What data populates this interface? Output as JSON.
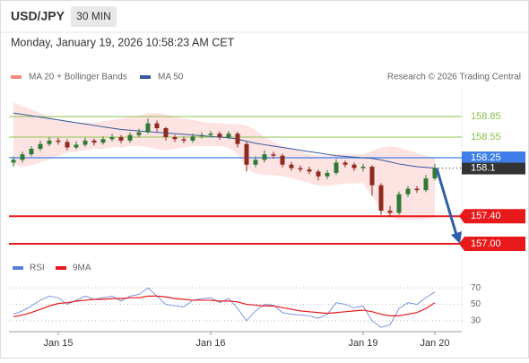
{
  "header": {
    "symbol": "USD/JPY",
    "interval": "30 MIN",
    "timestamp": "Monday, January 19, 2026 10:58:23 AM CET"
  },
  "chart_data": [
    {
      "type": "candlestick",
      "legend": [
        {
          "name": "MA 20 + Bollinger Bands",
          "color": "#f28b82"
        },
        {
          "name": "MA 50",
          "color": "#34589c"
        }
      ],
      "credit": "Research © 2026 Trading Central",
      "categories": [
        null,
        null,
        null,
        null,
        null,
        "Jan 15",
        null,
        null,
        null,
        null,
        null,
        null,
        null,
        null,
        null,
        null,
        null,
        null,
        null,
        null,
        null,
        null,
        "Jan 16",
        null,
        null,
        null,
        null,
        null,
        null,
        null,
        null,
        null,
        null,
        null,
        null,
        null,
        null,
        null,
        null,
        "Jan 19",
        null,
        null,
        null,
        null,
        null,
        null,
        null,
        "Jan 20"
      ],
      "open": [
        158.18,
        158.22,
        158.3,
        158.38,
        158.45,
        158.5,
        158.48,
        158.4,
        158.44,
        158.5,
        158.47,
        158.52,
        158.55,
        158.5,
        158.58,
        158.62,
        158.75,
        158.68,
        158.55,
        158.52,
        158.5,
        158.56,
        158.58,
        158.6,
        158.55,
        158.6,
        158.45,
        158.15,
        158.22,
        158.3,
        158.28,
        158.15,
        158.1,
        158.08,
        158.05,
        157.98,
        158.03,
        158.18,
        158.15,
        158.1,
        158.12,
        157.85,
        157.48,
        157.45,
        157.72,
        157.8,
        157.78,
        157.95
      ],
      "high": [
        158.27,
        158.34,
        158.42,
        158.5,
        158.55,
        158.54,
        158.52,
        158.49,
        158.54,
        158.53,
        158.56,
        158.6,
        158.58,
        158.62,
        158.67,
        158.82,
        158.79,
        158.7,
        158.58,
        158.56,
        158.6,
        158.62,
        158.64,
        158.63,
        158.64,
        158.63,
        158.48,
        158.27,
        158.36,
        158.34,
        158.31,
        158.19,
        158.14,
        158.12,
        158.08,
        158.07,
        158.23,
        158.21,
        158.18,
        158.16,
        158.14,
        157.88,
        157.55,
        157.76,
        157.84,
        157.84,
        158.0,
        158.16
      ],
      "low": [
        158.12,
        158.18,
        158.27,
        158.35,
        158.42,
        158.44,
        158.36,
        158.37,
        158.41,
        158.43,
        158.44,
        158.49,
        158.46,
        158.47,
        158.55,
        158.6,
        158.63,
        158.5,
        158.48,
        158.46,
        158.47,
        158.53,
        158.55,
        158.51,
        158.52,
        158.4,
        158.05,
        158.11,
        158.18,
        158.24,
        158.11,
        158.06,
        158.04,
        158.01,
        157.92,
        157.94,
        158.0,
        158.11,
        158.06,
        158.05,
        157.7,
        157.42,
        157.4,
        157.42,
        157.68,
        157.74,
        157.75,
        157.92
      ],
      "close": [
        158.22,
        158.3,
        158.38,
        158.45,
        158.5,
        158.48,
        158.4,
        158.44,
        158.5,
        158.47,
        158.52,
        158.55,
        158.5,
        158.58,
        158.62,
        158.75,
        158.68,
        158.55,
        158.52,
        158.5,
        158.56,
        158.58,
        158.6,
        158.55,
        158.6,
        158.45,
        158.15,
        158.22,
        158.3,
        158.28,
        158.15,
        158.1,
        158.08,
        158.05,
        157.98,
        158.03,
        158.18,
        158.15,
        158.1,
        158.12,
        157.85,
        157.48,
        157.45,
        157.72,
        157.8,
        157.78,
        157.95,
        158.1
      ],
      "ma50": [
        158.9,
        158.88,
        158.86,
        158.84,
        158.82,
        158.8,
        158.78,
        158.76,
        158.74,
        158.72,
        158.7,
        158.68,
        158.66,
        158.65,
        158.64,
        158.63,
        158.62,
        158.61,
        158.6,
        158.59,
        158.58,
        158.57,
        158.56,
        158.55,
        158.54,
        158.52,
        158.49,
        158.46,
        158.44,
        158.42,
        158.4,
        158.38,
        158.36,
        158.34,
        158.32,
        158.3,
        158.28,
        158.27,
        158.26,
        158.25,
        158.24,
        158.22,
        158.19,
        158.16,
        158.14,
        158.12,
        158.11,
        158.1
      ],
      "bollinger_upper": [
        159.05,
        159.0,
        158.95,
        158.9,
        158.85,
        158.8,
        158.78,
        158.76,
        158.76,
        158.76,
        158.78,
        158.8,
        158.82,
        158.84,
        158.86,
        158.9,
        158.9,
        158.88,
        158.85,
        158.82,
        158.8,
        158.78,
        158.76,
        158.75,
        158.74,
        158.74,
        158.72,
        158.65,
        158.55,
        158.48,
        158.42,
        158.38,
        158.35,
        158.3,
        158.28,
        158.28,
        158.3,
        158.3,
        158.3,
        158.3,
        158.35,
        158.4,
        158.42,
        158.4,
        158.36,
        158.32,
        158.28,
        158.25
      ],
      "bollinger_lower": [
        158.15,
        158.12,
        158.14,
        158.18,
        158.22,
        158.28,
        158.32,
        158.34,
        158.36,
        158.38,
        158.38,
        158.4,
        158.4,
        158.42,
        158.42,
        158.4,
        158.38,
        158.36,
        158.38,
        158.4,
        158.42,
        158.42,
        158.42,
        158.42,
        158.4,
        158.3,
        158.1,
        158.02,
        158.0,
        158.0,
        157.98,
        157.95,
        157.92,
        157.88,
        157.85,
        157.84,
        157.86,
        157.88,
        157.88,
        157.88,
        157.7,
        157.5,
        157.38,
        157.35,
        157.35,
        157.35,
        157.36,
        157.38
      ],
      "levels": [
        {
          "price": 158.85,
          "color": "#8bc34a",
          "style": "text"
        },
        {
          "price": 158.55,
          "color": "#8bc34a",
          "style": "text"
        },
        {
          "price": 158.25,
          "color": "#3f7ee8",
          "style": "box"
        },
        {
          "price": 158.1,
          "color": "#333333",
          "style": "last"
        },
        {
          "price": {
            "value": 157.4,
            "label": "157.40"
          },
          "color": "#e8191b",
          "style": "tag"
        },
        {
          "price": {
            "value": 157,
            "label": "157.00"
          },
          "color": "#e8191b",
          "style": "tag"
        }
      ],
      "ylim": [
        156.87,
        159.24
      ],
      "up_color": "#2f7a34",
      "down_color": "#8e2a1e"
    },
    {
      "type": "line",
      "legend_series": true,
      "series": [
        {
          "name": "RSI",
          "color": "#5b7fd6",
          "values": [
            38,
            42,
            48,
            55,
            60,
            58,
            50,
            55,
            60,
            56,
            58,
            60,
            54,
            60,
            62,
            70,
            60,
            50,
            48,
            47,
            55,
            57,
            58,
            52,
            57,
            45,
            30,
            42,
            50,
            49,
            40,
            38,
            37,
            36,
            33,
            38,
            52,
            50,
            46,
            48,
            30,
            22,
            25,
            45,
            52,
            50,
            58,
            65
          ]
        },
        {
          "name": "9MA",
          "color": "#e8191b",
          "values": [
            35,
            37,
            40,
            44,
            48,
            51,
            52,
            54,
            55,
            56,
            56,
            57,
            57,
            58,
            58,
            60,
            60,
            59,
            57,
            56,
            55,
            55,
            55,
            54,
            54,
            53,
            50,
            49,
            48,
            48,
            46,
            44,
            42,
            41,
            40,
            39,
            40,
            41,
            42,
            43,
            41,
            38,
            36,
            36,
            38,
            40,
            45,
            52
          ]
        }
      ],
      "ylim": [
        19,
        80
      ],
      "yticks": [
        70,
        50,
        30
      ]
    }
  ]
}
